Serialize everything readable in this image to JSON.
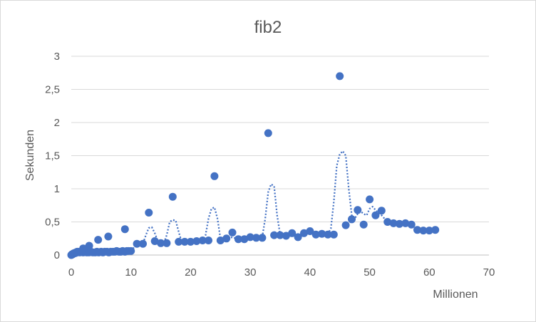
{
  "chart_data": {
    "type": "scatter",
    "title": "fib2",
    "xlabel": "Millionen",
    "ylabel": "Sekunden",
    "xlim": [
      0,
      70
    ],
    "ylim": [
      0,
      3
    ],
    "x_ticks": [
      "0",
      "10",
      "20",
      "30",
      "40",
      "50",
      "60",
      "70"
    ],
    "y_ticks": [
      "0",
      "0,5",
      "1",
      "1,5",
      "2",
      "2,5",
      "3"
    ],
    "grid": true,
    "marker_color": "#4472C4",
    "trendline": {
      "style": "dotted",
      "color": "#4472C4"
    },
    "series": [
      {
        "x": [
          0,
          0.1,
          0.2,
          0.3,
          0.4,
          0.5,
          0.6,
          0.7,
          0.8,
          0.9,
          1,
          1.2,
          1.4,
          1.6,
          1.8,
          2,
          2.3,
          2.6,
          3,
          3.3,
          3.6,
          4,
          4.3,
          4.6,
          5,
          5.3,
          5.6,
          6,
          6.3,
          6.6,
          7,
          7.3,
          7.6,
          8,
          8.3,
          8.6,
          9,
          9.3,
          9.6,
          10,
          2,
          3,
          4.5,
          6.2,
          9,
          11,
          12,
          13,
          14,
          15,
          16,
          17,
          18,
          19,
          20,
          21,
          22,
          23,
          24,
          25,
          26,
          27,
          28,
          29,
          30,
          31,
          32,
          33,
          34,
          35,
          36,
          37,
          38,
          39,
          40,
          41,
          42,
          43,
          44,
          45,
          46,
          47,
          48,
          49,
          50,
          51,
          52,
          53,
          54,
          55,
          56,
          57,
          58,
          59,
          60,
          61
        ],
        "y": [
          0,
          0.01,
          0.01,
          0.02,
          0.02,
          0.03,
          0.03,
          0.03,
          0.04,
          0.04,
          0.05,
          0.05,
          0.04,
          0.05,
          0.05,
          0.04,
          0.05,
          0.04,
          0.04,
          0.05,
          0.04,
          0.04,
          0.05,
          0.04,
          0.05,
          0.04,
          0.05,
          0.05,
          0.04,
          0.05,
          0.05,
          0.05,
          0.06,
          0.05,
          0.05,
          0.06,
          0.05,
          0.06,
          0.06,
          0.06,
          0.1,
          0.14,
          0.23,
          0.28,
          0.39,
          0.17,
          0.17,
          0.64,
          0.21,
          0.18,
          0.18,
          0.88,
          0.2,
          0.2,
          0.2,
          0.21,
          0.22,
          0.22,
          1.19,
          0.22,
          0.25,
          0.34,
          0.24,
          0.24,
          0.27,
          0.26,
          0.26,
          1.84,
          0.3,
          0.3,
          0.29,
          0.33,
          0.27,
          0.33,
          0.36,
          0.31,
          0.32,
          0.31,
          0.31,
          2.7,
          0.45,
          0.54,
          0.68,
          0.46,
          0.84,
          0.6,
          0.67,
          0.5,
          0.48,
          0.47,
          0.48,
          0.46,
          0.38,
          0.37,
          0.37,
          0.38
        ]
      }
    ],
    "trend_x": [
      10,
      11,
      12,
      12.5,
      13,
      13.5,
      14,
      14.5,
      15,
      15.5,
      16,
      16.5,
      17,
      17.5,
      18,
      18.5,
      19,
      20,
      21,
      22,
      22.5,
      23,
      23.5,
      24,
      24.5,
      25,
      25.5,
      26,
      27,
      28,
      29,
      30,
      31,
      32,
      32.5,
      33,
      33.5,
      34,
      34.5,
      35,
      36,
      37,
      38,
      39,
      40,
      41,
      42,
      43,
      43.5,
      44,
      44.5,
      45,
      45.5,
      46,
      46.5,
      47,
      47.5,
      48,
      48.5,
      49,
      49.5,
      50,
      50.5,
      51,
      52,
      53
    ],
    "trend_y": [
      0.06,
      0.17,
      0.17,
      0.3,
      0.41,
      0.42,
      0.33,
      0.21,
      0.18,
      0.18,
      0.3,
      0.5,
      0.53,
      0.52,
      0.35,
      0.2,
      0.2,
      0.2,
      0.21,
      0.22,
      0.3,
      0.55,
      0.7,
      0.72,
      0.55,
      0.25,
      0.23,
      0.24,
      0.27,
      0.24,
      0.24,
      0.27,
      0.26,
      0.27,
      0.55,
      0.95,
      1.07,
      1.04,
      0.6,
      0.31,
      0.3,
      0.3,
      0.3,
      0.32,
      0.33,
      0.31,
      0.32,
      0.32,
      0.4,
      0.8,
      1.35,
      1.52,
      1.57,
      1.5,
      1.0,
      0.6,
      0.55,
      0.62,
      0.66,
      0.62,
      0.6,
      0.7,
      0.73,
      0.68,
      0.6,
      0.5
    ]
  }
}
